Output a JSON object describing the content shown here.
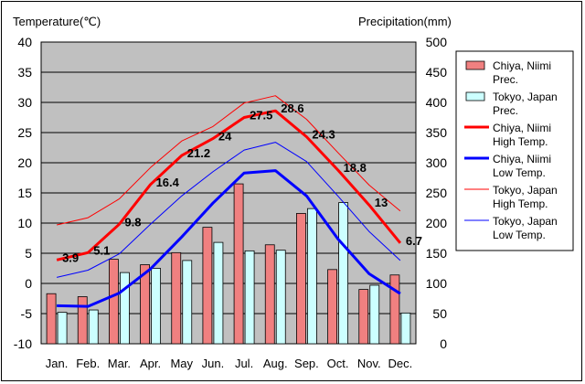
{
  "chart_data": {
    "type": "bar",
    "categories": [
      "Jan.",
      "Feb.",
      "Mar.",
      "Apr.",
      "May",
      "Jun.",
      "Jul.",
      "Aug.",
      "Sep.",
      "Oct.",
      "Nov.",
      "Dec."
    ],
    "left_axis": {
      "label": "Temperature(℃)",
      "ylim": [
        -10,
        40
      ],
      "ticks": [
        "-10",
        "-5",
        "0",
        "5",
        "10",
        "15",
        "20",
        "25",
        "30",
        "35",
        "40"
      ]
    },
    "right_axis": {
      "label": "Precipitation(mm)",
      "ylim": [
        0,
        500
      ],
      "ticks": [
        "0",
        "50",
        "100",
        "150",
        "200",
        "250",
        "300",
        "350",
        "400",
        "450",
        "500"
      ]
    },
    "grid": true,
    "plot_background": "#c0c0c0",
    "legend_position": "right",
    "bar_series": [
      {
        "name": "Chiya, Niimi Prec.",
        "legend": [
          "Chiya, Niimi",
          "Prec."
        ],
        "color": "#f08080",
        "axis": "right",
        "values": [
          83,
          78,
          140,
          131,
          151,
          193,
          265,
          164,
          216,
          123,
          90,
          114
        ]
      },
      {
        "name": "Tokyo, Japan Prec.",
        "legend": [
          "Tokyo, Japan",
          "Prec."
        ],
        "color": "#ccffff",
        "axis": "right",
        "values": [
          52,
          56,
          118,
          125,
          138,
          168,
          154,
          155,
          224,
          234,
          97,
          51
        ]
      }
    ],
    "line_series": [
      {
        "name": "Chiya, Niimi High Temp.",
        "legend": [
          "Chiya, Niimi",
          "High Temp."
        ],
        "color": "#ff0000",
        "width": 3,
        "axis": "left",
        "values": [
          3.9,
          5.1,
          9.8,
          16.4,
          21.2,
          24.0,
          27.5,
          28.6,
          24.3,
          18.8,
          13.0,
          6.7
        ],
        "labels": [
          "3.9",
          "5.1",
          "9.8",
          "16.4",
          "21.2",
          "24",
          "27.5",
          "28.6",
          "24.3",
          "18.8",
          "13",
          "6.7"
        ]
      },
      {
        "name": "Chiya, Niimi Low Temp.",
        "legend": [
          "Chiya, Niimi",
          "Low Temp."
        ],
        "color": "#0000ff",
        "width": 3,
        "axis": "left",
        "values": [
          -3.7,
          -3.8,
          -1.6,
          2.4,
          7.7,
          13.3,
          18.3,
          18.7,
          14.5,
          7.4,
          1.6,
          -1.7
        ]
      },
      {
        "name": "Tokyo, Japan High Temp.",
        "legend": [
          "Tokyo, Japan",
          "High Temp."
        ],
        "color": "#ff0000",
        "width": 1,
        "axis": "left",
        "values": [
          9.7,
          10.9,
          14.0,
          19.2,
          23.6,
          26.0,
          29.9,
          31.1,
          27.2,
          21.7,
          16.3,
          12.0
        ]
      },
      {
        "name": "Tokyo, Japan Low Temp.",
        "legend": [
          "Tokyo, Japan",
          "Low Temp."
        ],
        "color": "#0000ff",
        "width": 1,
        "axis": "left",
        "values": [
          1.0,
          2.2,
          4.9,
          9.8,
          14.5,
          18.5,
          22.1,
          23.4,
          20.2,
          14.5,
          8.6,
          3.8
        ]
      }
    ]
  }
}
